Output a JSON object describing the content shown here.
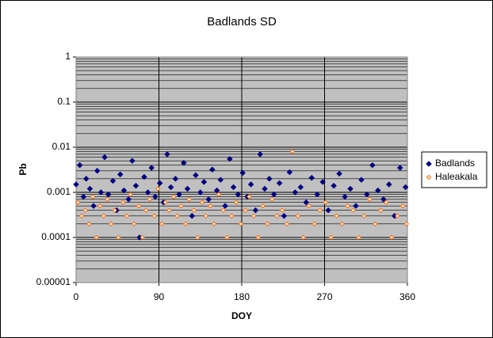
{
  "chart_data": {
    "type": "scatter",
    "title": "Badlands SD",
    "x_label": "DOY",
    "y_label": "Pb",
    "xlim": [
      0,
      360
    ],
    "xticks": [
      0,
      90,
      180,
      270,
      360
    ],
    "ylim": [
      1e-05,
      1
    ],
    "yticks": [
      1,
      0.1,
      0.01,
      0.001,
      0.0001,
      1e-05
    ],
    "log_y": true,
    "grid": true,
    "minor_grid": true,
    "legend": "right",
    "series": [
      {
        "name": "Badlands",
        "color": "#000080",
        "marker": "filled",
        "x": [
          0,
          4,
          8,
          11,
          15,
          19,
          23,
          27,
          31,
          35,
          40,
          44,
          48,
          52,
          57,
          61,
          65,
          69,
          74,
          78,
          82,
          86,
          91,
          95,
          99,
          103,
          108,
          112,
          117,
          121,
          126,
          130,
          135,
          139,
          144,
          148,
          153,
          157,
          162,
          167,
          171,
          176,
          181,
          186,
          190,
          195,
          200,
          205,
          210,
          215,
          221,
          226,
          232,
          238,
          244,
          250,
          256,
          262,
          268,
          274,
          280,
          286,
          292,
          298,
          304,
          310,
          316,
          322,
          328,
          334,
          340,
          346,
          352,
          358
        ],
        "values": [
          0.0015,
          0.004,
          0.0008,
          0.002,
          0.0012,
          0.0005,
          0.003,
          0.001,
          0.006,
          0.0009,
          0.0018,
          0.0004,
          0.0025,
          0.0011,
          0.0007,
          0.005,
          0.0014,
          0.0001,
          0.0022,
          0.001,
          0.0035,
          0.0008,
          0.0016,
          0.0006,
          0.007,
          0.0013,
          0.002,
          0.0009,
          0.0045,
          0.0012,
          0.0003,
          0.0024,
          0.001,
          0.0017,
          0.0007,
          0.0032,
          0.0011,
          0.0019,
          0.0005,
          0.0055,
          0.0013,
          0.0009,
          0.0027,
          0.0008,
          0.0015,
          0.0004,
          0.007,
          0.0012,
          0.002,
          0.0009,
          0.0016,
          0.0003,
          0.0028,
          0.001,
          0.0013,
          0.0006,
          0.0021,
          0.0009,
          0.0017,
          0.0004,
          0.0014,
          0.0026,
          0.0008,
          0.0012,
          0.0005,
          0.0019,
          0.0009,
          0.004,
          0.0011,
          0.0007,
          0.0015,
          0.0003,
          0.0035,
          0.0013
        ]
      },
      {
        "name": "Haleakala",
        "color": "#ff6600",
        "marker": "open",
        "x": [
          2,
          6,
          10,
          14,
          18,
          22,
          26,
          30,
          34,
          38,
          42,
          46,
          51,
          55,
          59,
          63,
          68,
          72,
          76,
          80,
          85,
          89,
          93,
          97,
          101,
          106,
          110,
          114,
          119,
          123,
          128,
          132,
          137,
          141,
          146,
          150,
          155,
          160,
          164,
          169,
          174,
          179,
          184,
          188,
          193,
          198,
          203,
          208,
          213,
          218,
          224,
          229,
          235,
          241,
          247,
          253,
          259,
          265,
          271,
          277,
          283,
          289,
          295,
          301,
          307,
          313,
          319,
          325,
          331,
          337,
          343,
          349,
          355,
          359
        ],
        "values": [
          0.0006,
          0.0003,
          0.0004,
          0.0002,
          0.0008,
          0.0001,
          0.0005,
          0.0003,
          0.0007,
          0.0002,
          0.0004,
          0.0001,
          0.0006,
          0.0003,
          0.0009,
          0.0002,
          0.0005,
          0.0001,
          0.0004,
          0.0007,
          0.0003,
          0.0012,
          0.0002,
          0.0006,
          0.0004,
          0.0008,
          0.0003,
          0.0005,
          0.0002,
          0.0007,
          0.0004,
          0.0001,
          0.0006,
          0.0003,
          0.0005,
          0.0002,
          0.0009,
          0.0004,
          0.0001,
          0.0003,
          0.0006,
          0.0002,
          0.0004,
          0.0008,
          0.0003,
          0.0001,
          0.0005,
          0.0002,
          0.0007,
          0.0003,
          0.0004,
          0.0002,
          0.008,
          0.0003,
          0.0001,
          0.0005,
          0.0002,
          0.0004,
          0.0006,
          0.0001,
          0.0003,
          0.0002,
          0.0005,
          0.0004,
          0.0001,
          0.0003,
          0.0007,
          0.0002,
          0.0004,
          0.0006,
          0.0001,
          0.0003,
          0.0005,
          0.0002
        ]
      }
    ]
  }
}
